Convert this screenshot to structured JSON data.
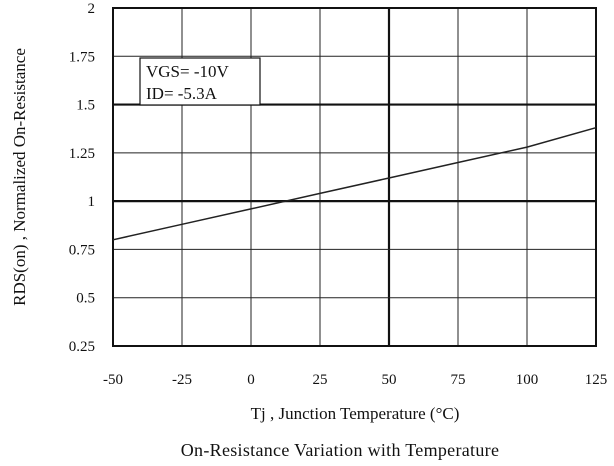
{
  "chart_data": {
    "type": "line",
    "title": "On-Resistance Variation with Temperature",
    "xlabel": "Tj , Junction Temperature (°C)",
    "ylabel": "RDS(on) , Normalized On-Resistance",
    "xlim": [
      -50,
      125
    ],
    "ylim": [
      0.25,
      2
    ],
    "x_ticks": [
      "-50",
      "-25",
      "0",
      "25",
      "50",
      "75",
      "100",
      "125"
    ],
    "y_ticks": [
      "0.25",
      "0.5",
      "0.75",
      "1",
      "1.25",
      "1.5",
      "1.75",
      "2"
    ],
    "grid": true,
    "annotations": [
      "VGS= -10V",
      "ID= -5.3A"
    ],
    "series": [
      {
        "x": [
          -50,
          -25,
          0,
          25,
          50,
          75,
          100,
          125
        ],
        "y": [
          0.8,
          0.88,
          0.96,
          1.04,
          1.12,
          1.2,
          1.28,
          1.38
        ]
      }
    ]
  }
}
